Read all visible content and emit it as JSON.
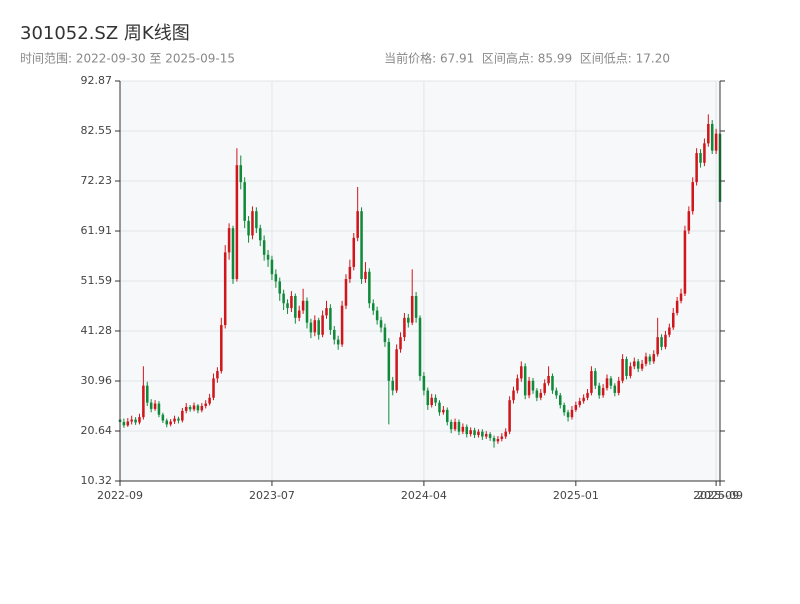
{
  "chart_data": {
    "type": "candlestick",
    "title": "301052.SZ 周K线图",
    "subtitle": "时间范围: 2022-09-30 至 2025-09-15",
    "info": "当前价格: 67.91  区间高点: 85.99  区间低点: 17.20",
    "up_color": "#d0161b",
    "down_color": "#108a3a",
    "grid": true,
    "ylim": [
      10.32,
      92.87
    ],
    "yticks": [
      10.32,
      20.64,
      30.96,
      41.28,
      51.59,
      61.91,
      72.23,
      82.55,
      92.87
    ],
    "xticks": [
      {
        "value": 0,
        "label": "2022-09"
      },
      {
        "value": 39,
        "label": "2023-07"
      },
      {
        "value": 78,
        "label": "2024-04"
      },
      {
        "value": 117,
        "label": "2025-01"
      },
      {
        "value": 153,
        "label": "2025-09"
      },
      {
        "value": 154,
        "label": "2025-09"
      }
    ],
    "ohlc": [
      [
        23.0,
        23.6,
        21.9,
        22.5
      ],
      [
        22.5,
        23.2,
        21.3,
        21.8
      ],
      [
        21.8,
        23.3,
        21.5,
        22.6
      ],
      [
        22.6,
        23.8,
        22.0,
        23.0
      ],
      [
        23.0,
        23.5,
        21.9,
        22.4
      ],
      [
        22.4,
        24.2,
        22.0,
        23.5
      ],
      [
        23.5,
        34.0,
        23.0,
        30.0
      ],
      [
        30.0,
        30.8,
        25.8,
        26.5
      ],
      [
        26.5,
        27.2,
        24.5,
        25.2
      ],
      [
        25.2,
        27.0,
        24.8,
        26.3
      ],
      [
        26.3,
        26.8,
        23.5,
        24.0
      ],
      [
        24.0,
        24.4,
        22.3,
        22.8
      ],
      [
        22.8,
        23.2,
        21.4,
        22.0
      ],
      [
        22.0,
        23.1,
        21.6,
        22.6
      ],
      [
        22.6,
        23.8,
        22.1,
        23.2
      ],
      [
        23.2,
        23.6,
        22.2,
        22.8
      ],
      [
        22.8,
        25.4,
        22.4,
        24.8
      ],
      [
        24.8,
        26.4,
        24.3,
        25.6
      ],
      [
        25.6,
        26.0,
        24.6,
        25.1
      ],
      [
        25.1,
        26.5,
        24.7,
        25.9
      ],
      [
        25.9,
        26.2,
        24.3,
        24.9
      ],
      [
        24.9,
        26.4,
        24.5,
        25.8
      ],
      [
        25.8,
        27.0,
        25.3,
        26.3
      ],
      [
        26.3,
        28.3,
        25.9,
        27.5
      ],
      [
        27.5,
        32.5,
        27.0,
        31.5
      ],
      [
        31.5,
        33.8,
        30.6,
        33.0
      ],
      [
        33.0,
        44.0,
        32.5,
        42.5
      ],
      [
        42.5,
        59.0,
        41.8,
        57.5
      ],
      [
        57.5,
        63.5,
        56.0,
        62.5
      ],
      [
        62.5,
        63.0,
        51.0,
        52.0
      ],
      [
        52.0,
        79.0,
        51.5,
        75.5
      ],
      [
        75.5,
        77.5,
        70.5,
        72.0
      ],
      [
        72.0,
        73.0,
        62.5,
        64.0
      ],
      [
        64.0,
        65.0,
        59.5,
        61.0
      ],
      [
        61.0,
        67.0,
        60.2,
        66.0
      ],
      [
        66.0,
        66.8,
        61.5,
        62.5
      ],
      [
        62.5,
        63.2,
        58.8,
        60.0
      ],
      [
        60.0,
        61.0,
        55.8,
        57.0
      ],
      [
        57.0,
        58.0,
        54.5,
        56.0
      ],
      [
        56.0,
        56.8,
        51.8,
        53.0
      ],
      [
        53.0,
        54.0,
        50.2,
        51.5
      ],
      [
        51.5,
        52.3,
        47.5,
        49.0
      ],
      [
        49.0,
        49.8,
        45.6,
        47.0
      ],
      [
        47.0,
        47.8,
        44.8,
        46.0
      ],
      [
        46.0,
        49.5,
        45.2,
        48.5
      ],
      [
        48.5,
        49.0,
        42.8,
        44.0
      ],
      [
        44.0,
        46.5,
        43.3,
        45.5
      ],
      [
        45.5,
        50.0,
        44.8,
        47.5
      ],
      [
        47.5,
        48.2,
        41.8,
        43.0
      ],
      [
        43.0,
        43.8,
        39.8,
        41.0
      ],
      [
        41.0,
        44.5,
        40.2,
        43.5
      ],
      [
        43.5,
        44.0,
        39.5,
        40.5
      ],
      [
        40.5,
        45.5,
        40.0,
        44.5
      ],
      [
        44.5,
        47.5,
        43.8,
        46.0
      ],
      [
        46.0,
        46.8,
        40.5,
        41.5
      ],
      [
        41.5,
        42.3,
        38.5,
        39.5
      ],
      [
        39.5,
        40.3,
        37.4,
        38.5
      ],
      [
        38.5,
        47.5,
        38.0,
        46.5
      ],
      [
        46.5,
        53.0,
        45.8,
        52.0
      ],
      [
        52.0,
        56.0,
        51.2,
        54.5
      ],
      [
        54.5,
        61.5,
        53.8,
        60.5
      ],
      [
        60.5,
        71.0,
        59.8,
        66.0
      ],
      [
        66.0,
        66.8,
        51.0,
        52.0
      ],
      [
        52.0,
        55.5,
        51.2,
        53.5
      ],
      [
        53.5,
        54.2,
        46.0,
        47.0
      ],
      [
        47.0,
        47.8,
        44.6,
        45.5
      ],
      [
        45.5,
        46.3,
        42.6,
        43.5
      ],
      [
        43.5,
        44.2,
        41.0,
        42.0
      ],
      [
        42.0,
        42.8,
        38.0,
        39.0
      ],
      [
        39.0,
        39.8,
        22.0,
        31.0
      ],
      [
        31.0,
        31.8,
        28.0,
        29.0
      ],
      [
        29.0,
        38.5,
        28.5,
        37.5
      ],
      [
        37.5,
        41.0,
        36.8,
        40.0
      ],
      [
        40.0,
        45.0,
        39.2,
        44.0
      ],
      [
        44.0,
        44.8,
        42.0,
        43.0
      ],
      [
        43.0,
        54.0,
        42.5,
        48.5
      ],
      [
        48.5,
        49.3,
        43.0,
        44.0
      ],
      [
        44.0,
        44.5,
        31.0,
        32.0
      ],
      [
        32.0,
        32.8,
        28.0,
        29.0
      ],
      [
        29.0,
        29.6,
        25.0,
        26.0
      ],
      [
        26.0,
        28.3,
        25.5,
        27.5
      ],
      [
        27.5,
        28.2,
        25.8,
        26.5
      ],
      [
        26.5,
        27.0,
        23.8,
        24.5
      ],
      [
        24.5,
        25.8,
        24.0,
        25.0
      ],
      [
        25.0,
        25.5,
        21.8,
        22.5
      ],
      [
        22.5,
        23.0,
        20.2,
        21.0
      ],
      [
        21.0,
        23.2,
        20.6,
        22.5
      ],
      [
        22.5,
        23.0,
        19.8,
        20.5
      ],
      [
        20.5,
        22.2,
        20.0,
        21.5
      ],
      [
        21.5,
        22.0,
        19.3,
        20.0
      ],
      [
        20.0,
        21.4,
        19.5,
        20.8
      ],
      [
        20.8,
        21.3,
        19.2,
        19.8
      ],
      [
        19.8,
        21.0,
        19.3,
        20.5
      ],
      [
        20.5,
        21.0,
        18.8,
        19.5
      ],
      [
        19.5,
        20.6,
        19.0,
        20.0
      ],
      [
        20.0,
        20.4,
        18.6,
        19.2
      ],
      [
        19.2,
        19.7,
        17.2,
        18.5
      ],
      [
        18.5,
        19.6,
        18.0,
        19.0
      ],
      [
        19.0,
        20.2,
        18.5,
        19.5
      ],
      [
        19.5,
        21.2,
        19.0,
        20.5
      ],
      [
        20.5,
        27.8,
        20.0,
        27.0
      ],
      [
        27.0,
        29.8,
        26.3,
        29.0
      ],
      [
        29.0,
        32.3,
        28.4,
        31.5
      ],
      [
        31.5,
        35.0,
        30.8,
        34.0
      ],
      [
        34.0,
        34.6,
        27.2,
        28.0
      ],
      [
        28.0,
        31.8,
        27.4,
        31.0
      ],
      [
        31.0,
        31.6,
        28.3,
        29.0
      ],
      [
        29.0,
        29.5,
        26.8,
        27.5
      ],
      [
        27.5,
        29.3,
        27.0,
        28.5
      ],
      [
        28.5,
        31.3,
        28.0,
        30.5
      ],
      [
        30.5,
        34.0,
        30.0,
        32.0
      ],
      [
        32.0,
        32.5,
        28.3,
        29.0
      ],
      [
        29.0,
        29.6,
        27.3,
        28.0
      ],
      [
        28.0,
        28.5,
        25.3,
        26.0
      ],
      [
        26.0,
        26.5,
        23.8,
        24.5
      ],
      [
        24.5,
        25.0,
        22.6,
        23.5
      ],
      [
        23.5,
        25.8,
        23.0,
        25.0
      ],
      [
        25.0,
        26.7,
        24.6,
        26.0
      ],
      [
        26.0,
        27.5,
        25.5,
        26.8
      ],
      [
        26.8,
        28.2,
        26.3,
        27.5
      ],
      [
        27.5,
        29.3,
        27.0,
        28.5
      ],
      [
        28.5,
        34.0,
        28.0,
        33.0
      ],
      [
        33.0,
        33.6,
        29.3,
        30.0
      ],
      [
        30.0,
        30.6,
        27.3,
        28.0
      ],
      [
        28.0,
        30.3,
        27.5,
        29.5
      ],
      [
        29.5,
        32.3,
        29.0,
        31.5
      ],
      [
        31.5,
        32.0,
        29.3,
        30.0
      ],
      [
        30.0,
        30.5,
        27.8,
        28.5
      ],
      [
        28.5,
        31.8,
        28.0,
        31.0
      ],
      [
        31.0,
        36.5,
        30.5,
        35.5
      ],
      [
        35.5,
        36.0,
        31.3,
        32.0
      ],
      [
        32.0,
        34.8,
        31.5,
        34.0
      ],
      [
        34.0,
        35.8,
        33.4,
        35.0
      ],
      [
        35.0,
        35.5,
        32.8,
        33.5
      ],
      [
        33.5,
        35.3,
        33.0,
        34.5
      ],
      [
        34.5,
        36.8,
        34.0,
        36.0
      ],
      [
        36.0,
        36.5,
        34.3,
        35.0
      ],
      [
        35.0,
        37.3,
        34.5,
        36.5
      ],
      [
        36.5,
        44.0,
        36.0,
        40.0
      ],
      [
        40.0,
        40.6,
        37.3,
        38.0
      ],
      [
        38.0,
        41.3,
        37.5,
        40.5
      ],
      [
        40.5,
        42.8,
        40.0,
        42.0
      ],
      [
        42.0,
        46.0,
        41.5,
        45.0
      ],
      [
        45.0,
        48.3,
        44.5,
        47.5
      ],
      [
        47.5,
        50.0,
        47.0,
        49.0
      ],
      [
        49.0,
        63.0,
        48.5,
        62.0
      ],
      [
        62.0,
        67.0,
        61.3,
        66.0
      ],
      [
        66.0,
        73.0,
        65.3,
        72.0
      ],
      [
        72.0,
        79.0,
        71.3,
        78.0
      ],
      [
        78.0,
        78.8,
        75.0,
        76.0
      ],
      [
        76.0,
        81.0,
        75.3,
        80.0
      ],
      [
        80.0,
        85.99,
        79.3,
        84.0
      ],
      [
        84.0,
        84.8,
        77.8,
        78.5
      ],
      [
        78.5,
        83.0,
        77.8,
        82.0
      ],
      [
        82.0,
        82.8,
        66.5,
        67.91
      ]
    ]
  }
}
